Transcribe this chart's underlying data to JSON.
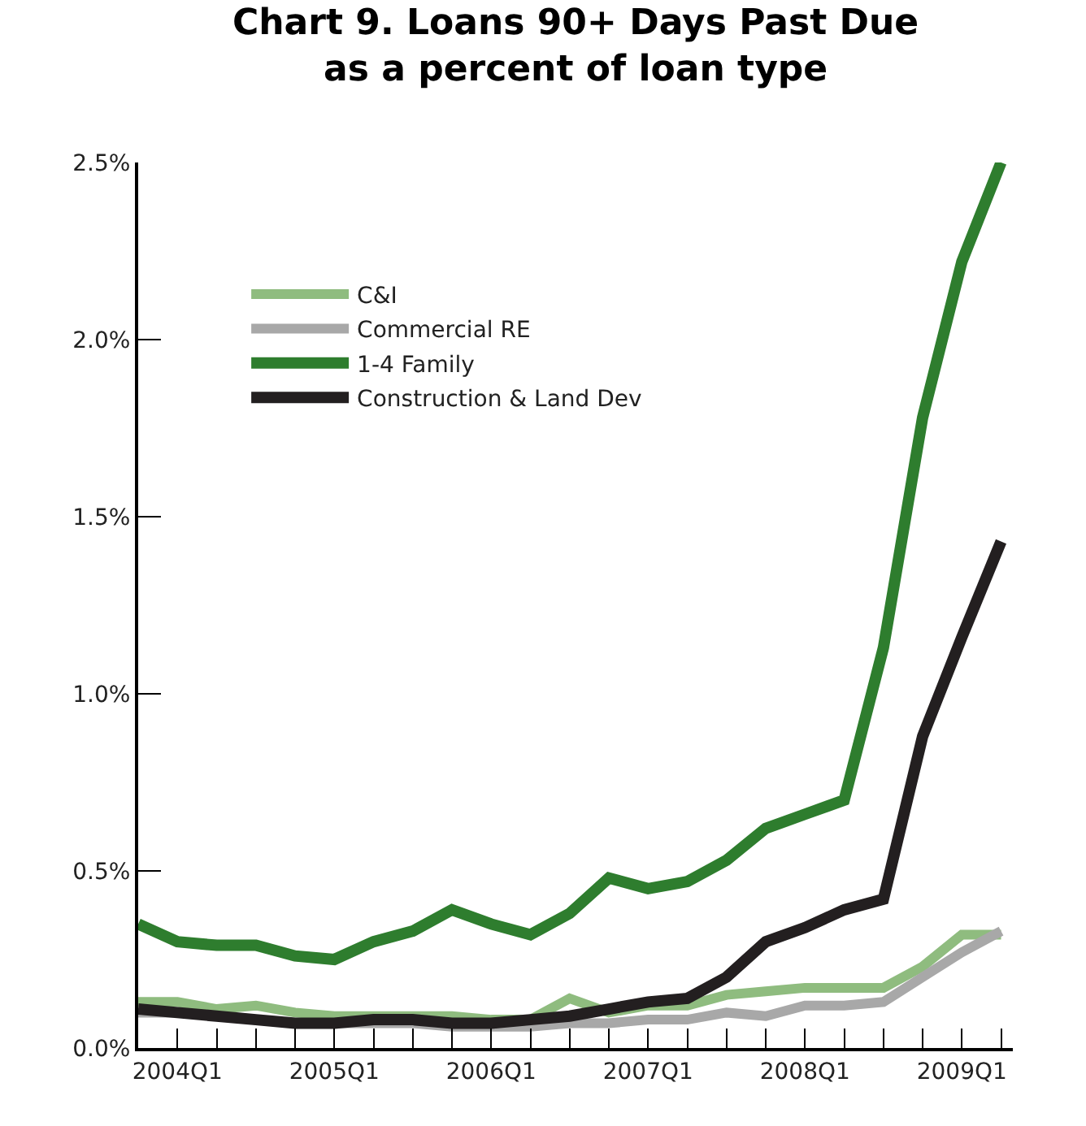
{
  "chart_data": {
    "type": "line",
    "title": "Chart 9. Loans 90+ Days Past Due\nas a percent of loan type",
    "categories": [
      null,
      "2004Q1",
      null,
      null,
      null,
      "2005Q1",
      null,
      null,
      null,
      "2006Q1",
      null,
      null,
      null,
      "2007Q1",
      null,
      null,
      null,
      "2008Q1",
      null,
      null,
      null,
      "2009Q1",
      null
    ],
    "ylim": [
      0,
      2.5
    ],
    "yticks": [
      {
        "value": 0,
        "label": "0.0%"
      },
      {
        "value": 0.5,
        "label": "0.5%"
      },
      {
        "value": 1.0,
        "label": "1.0%"
      },
      {
        "value": 1.5,
        "label": "1.5%"
      },
      {
        "value": 2.0,
        "label": "2.0%"
      },
      {
        "value": 2.5,
        "label": "2.5%"
      }
    ],
    "legend": "top left",
    "marker": "none",
    "line_style": "solid",
    "series": [
      {
        "name": "C&I",
        "color": "#8fbc7f",
        "values": [
          0.13,
          0.13,
          0.11,
          0.12,
          0.1,
          0.09,
          0.09,
          0.09,
          0.09,
          0.08,
          0.08,
          0.14,
          0.1,
          0.12,
          0.12,
          0.15,
          0.16,
          0.17,
          0.17,
          0.17,
          0.23,
          0.32,
          0.32
        ]
      },
      {
        "name": "Commercial RE",
        "color": "#a8a8a8",
        "values": [
          0.1,
          0.1,
          0.09,
          0.08,
          0.07,
          0.07,
          0.07,
          0.07,
          0.06,
          0.06,
          0.06,
          0.07,
          0.07,
          0.08,
          0.08,
          0.1,
          0.09,
          0.12,
          0.12,
          0.13,
          0.2,
          0.27,
          0.33
        ]
      },
      {
        "name": "1-4 Family",
        "color": "#2e7d2e",
        "values": [
          0.35,
          0.3,
          0.29,
          0.29,
          0.26,
          0.25,
          0.3,
          0.33,
          0.39,
          0.35,
          0.32,
          0.38,
          0.48,
          0.45,
          0.47,
          0.53,
          0.62,
          0.66,
          0.7,
          1.13,
          1.78,
          2.22,
          2.5
        ]
      },
      {
        "name": "Construction & Land Dev",
        "color": "#231f20",
        "values": [
          0.11,
          0.1,
          0.09,
          0.08,
          0.07,
          0.07,
          0.08,
          0.08,
          0.07,
          0.07,
          0.08,
          0.09,
          0.11,
          0.13,
          0.14,
          0.2,
          0.3,
          0.34,
          0.39,
          0.42,
          0.88,
          1.16,
          1.43
        ]
      }
    ]
  }
}
